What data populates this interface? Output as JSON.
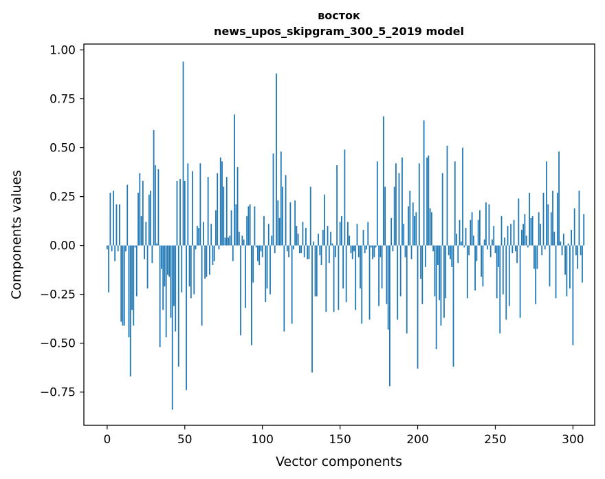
{
  "chart_data": {
    "type": "bar",
    "title_line1": "восток",
    "title_line2": "news_upos_skipgram_300_5_2019 model",
    "xlabel": "Vector components",
    "ylabel": "Components values",
    "xlim": [
      -15,
      314
    ],
    "ylim": [
      -0.92,
      1.03
    ],
    "xticks": [
      0,
      50,
      100,
      150,
      200,
      250,
      300
    ],
    "yticks": [
      1.0,
      0.75,
      0.5,
      0.25,
      0.0,
      -0.25,
      -0.5,
      -0.75
    ],
    "xtick_labels": [
      "0",
      "50",
      "100",
      "150",
      "200",
      "250",
      "300"
    ],
    "ytick_labels": [
      "1.00",
      "0.75",
      "0.50",
      "0.25",
      "0.00",
      "−0.25",
      "−0.50",
      "−0.75"
    ],
    "bar_color": "#1f77b4",
    "values": [
      -0.02,
      -0.24,
      0.27,
      -0.03,
      0.28,
      -0.08,
      0.21,
      -0.03,
      0.21,
      -0.39,
      -0.41,
      -0.41,
      -0.03,
      0.31,
      -0.47,
      -0.67,
      -0.33,
      -0.41,
      -0.01,
      -0.26,
      0.27,
      0.37,
      0.15,
      0.33,
      -0.07,
      0.12,
      -0.22,
      0.26,
      0.28,
      -0.09,
      0.59,
      0.41,
      0.01,
      0.39,
      -0.52,
      -0.12,
      -0.33,
      -0.21,
      -0.47,
      -0.15,
      -0.16,
      -0.37,
      -0.84,
      -0.31,
      -0.44,
      0.33,
      -0.62,
      0.34,
      -0.24,
      0.94,
      0.33,
      -0.74,
      0.42,
      -0.21,
      -0.27,
      0.38,
      -0.25,
      -0.02,
      0.1,
      0.09,
      0.42,
      -0.41,
      0.12,
      -0.17,
      -0.16,
      0.35,
      -0.15,
      0.11,
      -0.1,
      -0.08,
      0.18,
      0.37,
      -0.02,
      0.45,
      0.43,
      0.3,
      0.04,
      0.35,
      0.04,
      0.05,
      0.18,
      -0.08,
      0.67,
      0.21,
      0.4,
      0.07,
      -0.46,
      0.05,
      0.03,
      -0.32,
      0.15,
      0.2,
      0.21,
      -0.51,
      -0.19,
      0.2,
      -0.01,
      -0.08,
      -0.1,
      -0.03,
      -0.06,
      0.15,
      -0.29,
      -0.22,
      0.11,
      -0.25,
      0.05,
      0.47,
      -0.04,
      0.88,
      0.23,
      0.14,
      0.48,
      0.3,
      -0.44,
      0.36,
      -0.03,
      -0.06,
      0.22,
      -0.4,
      -0.02,
      0.23,
      0.1,
      0.06,
      -0.04,
      -0.04,
      0.12,
      -0.06,
      0.09,
      -0.07,
      -0.07,
      0.3,
      -0.65,
      0.02,
      -0.26,
      -0.26,
      0.06,
      -0.05,
      -0.1,
      0.08,
      0.26,
      -0.34,
      0.1,
      -0.09,
      0.07,
      0.01,
      -0.34,
      -0.06,
      0.41,
      -0.33,
      0.12,
      0.15,
      -0.22,
      0.49,
      -0.29,
      0.12,
      0.05,
      -0.04,
      -0.07,
      -0.03,
      -0.33,
      0.11,
      -0.06,
      -0.22,
      -0.4,
      0.08,
      -0.04,
      -0.02,
      0.12,
      -0.38,
      -0.01,
      -0.07,
      -0.06,
      -0.01,
      0.43,
      -0.31,
      -0.06,
      -0.22,
      0.66,
      0.3,
      -0.3,
      -0.43,
      -0.72,
      0.14,
      -0.03,
      0.3,
      0.42,
      -0.38,
      0.37,
      -0.26,
      0.45,
      0.11,
      -0.06,
      -0.45,
      0.2,
      0.28,
      -0.07,
      0.22,
      0.15,
      0.17,
      -0.63,
      0.42,
      -0.17,
      -0.3,
      0.64,
      -0.11,
      0.45,
      0.46,
      0.19,
      0.17,
      -0.03,
      -0.26,
      -0.53,
      -0.1,
      -0.28,
      -0.41,
      0.37,
      -0.37,
      -0.27,
      0.51,
      -0.05,
      -0.07,
      -0.11,
      -0.62,
      0.43,
      0.06,
      -0.09,
      0.13,
      0.02,
      0.5,
      -0.01,
      0.09,
      -0.27,
      -0.05,
      0.13,
      0.17,
      0.05,
      -0.23,
      -0.08,
      0.13,
      0.18,
      -0.16,
      -0.21,
      0.03,
      0.22,
      -0.02,
      0.21,
      -0.06,
      0.03,
      0.1,
      -0.04,
      -0.27,
      -0.11,
      -0.45,
      0.15,
      -0.25,
      0.04,
      -0.38,
      0.1,
      -0.31,
      0.11,
      -0.04,
      0.13,
      -0.03,
      -0.09,
      0.24,
      -0.37,
      0.08,
      0.11,
      0.16,
      0.05,
      -0.01,
      0.27,
      0.14,
      0.15,
      -0.12,
      -0.3,
      -0.12,
      0.17,
      0.11,
      -0.05,
      0.27,
      -0.02,
      0.43,
      0.21,
      -0.21,
      0.17,
      0.28,
      0.07,
      -0.27,
      0.27,
      0.48,
      0.02,
      -0.05,
      0.06,
      -0.15,
      -0.26,
      0.01,
      -0.22,
      0.08,
      -0.51,
      0.19,
      -0.05,
      -0.12,
      0.28,
      -0.05,
      -0.19,
      0.16
    ]
  }
}
